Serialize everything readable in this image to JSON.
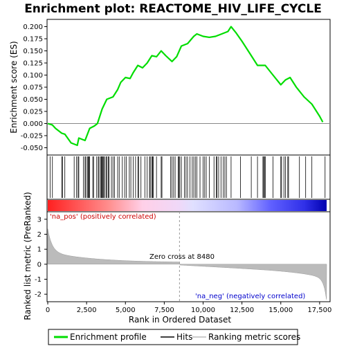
{
  "chart_data": {
    "type": "line",
    "title": "Enrichment plot: REACTOME_HIV_LIFE_CYCLE",
    "ylabel_top": "Enrichment score (ES)",
    "ylabel_bottom": "Ranked list metric (PreRanked)",
    "xlabel": "Rank in Ordered Dataset",
    "xlim": [
      0,
      18000
    ],
    "ylim_es": [
      -0.065,
      0.215
    ],
    "ylim_metric": [
      -2.5,
      3.5
    ],
    "x_ticks": [
      0,
      2500,
      5000,
      7500,
      10000,
      12500,
      15000,
      17500
    ],
    "x_tick_labels": [
      "0",
      "2,500",
      "5,000",
      "7,500",
      "10,000",
      "12,500",
      "15,000",
      "17,500"
    ],
    "es_ticks": [
      -0.05,
      -0.025,
      0.0,
      0.025,
      0.05,
      0.075,
      0.1,
      0.125,
      0.15,
      0.175,
      0.2
    ],
    "es_tick_labels": [
      "-0.050",
      "-0.025",
      "0.000",
      "0.025",
      "0.050",
      "0.075",
      "0.100",
      "0.125",
      "0.150",
      "0.175",
      "0.200"
    ],
    "metric_ticks": [
      -2,
      -1,
      0,
      1,
      2,
      3
    ],
    "metric_tick_labels": [
      "-2",
      "-1",
      "0",
      "1",
      "2",
      "3"
    ],
    "zero_cross_rank": 8480,
    "zero_cross_label": "Zero cross at 8480",
    "pos_label": "'na_pos' (positively correlated)",
    "neg_label": "'na_neg' (negatively correlated)",
    "legend": [
      "Enrichment profile",
      "Hits",
      "Ranking metric scores"
    ],
    "colors": {
      "es_line": "#00dd00",
      "pos_text": "#cc0000",
      "neg_text": "#0000cc"
    },
    "es_profile": {
      "x": [
        0,
        300,
        500,
        900,
        1100,
        1500,
        1900,
        2000,
        2400,
        2700,
        3000,
        3200,
        3500,
        3800,
        4200,
        4500,
        4700,
        5000,
        5300,
        5500,
        5800,
        6100,
        6400,
        6700,
        7000,
        7300,
        7600,
        8000,
        8300,
        8600,
        9000,
        9400,
        9600,
        10000,
        10400,
        10800,
        11200,
        11600,
        11800,
        12100,
        12500,
        13000,
        13500,
        14000,
        14500,
        15000,
        15300,
        15600,
        16000,
        16500,
        17000,
        17500,
        17700
      ],
      "y": [
        0.0,
        -0.003,
        -0.01,
        -0.02,
        -0.022,
        -0.04,
        -0.045,
        -0.03,
        -0.035,
        -0.01,
        -0.005,
        0.0,
        0.03,
        0.05,
        0.055,
        0.07,
        0.085,
        0.095,
        0.093,
        0.105,
        0.12,
        0.115,
        0.125,
        0.14,
        0.138,
        0.15,
        0.14,
        0.128,
        0.138,
        0.16,
        0.165,
        0.18,
        0.185,
        0.18,
        0.178,
        0.18,
        0.185,
        0.19,
        0.2,
        0.188,
        0.17,
        0.145,
        0.12,
        0.12,
        0.1,
        0.08,
        0.09,
        0.095,
        0.075,
        0.055,
        0.04,
        0.015,
        0.003
      ]
    },
    "hits": [
      150,
      300,
      900,
      950,
      1100,
      1700,
      1850,
      1950,
      2000,
      2300,
      2400,
      2450,
      2550,
      2600,
      2650,
      2700,
      2900,
      2950,
      3150,
      3250,
      3300,
      3400,
      3450,
      3500,
      3550,
      3600,
      3650,
      3750,
      3800,
      3900,
      3950,
      4100,
      4200,
      4300,
      4500,
      4600,
      4800,
      4950,
      5050,
      5250,
      5350,
      5500,
      5650,
      5800,
      5850,
      6000,
      6250,
      6400,
      6550,
      6600,
      6700,
      6750,
      6800,
      7000,
      7300,
      7350,
      7900,
      8000,
      8100,
      8200,
      8400,
      8450,
      8500,
      8600,
      8800,
      8900,
      9000,
      9150,
      9300,
      9400,
      9500,
      9600,
      9800,
      10000,
      10100,
      10200,
      10400,
      10700,
      10850,
      10900,
      11000,
      11150,
      11300,
      11400,
      11500,
      11800,
      12400,
      13100,
      13500,
      13850,
      13900,
      13950,
      14000,
      14500,
      15000,
      15050,
      15200,
      15300,
      15450,
      15500,
      16200,
      16600,
      17000,
      17850
    ]
  }
}
